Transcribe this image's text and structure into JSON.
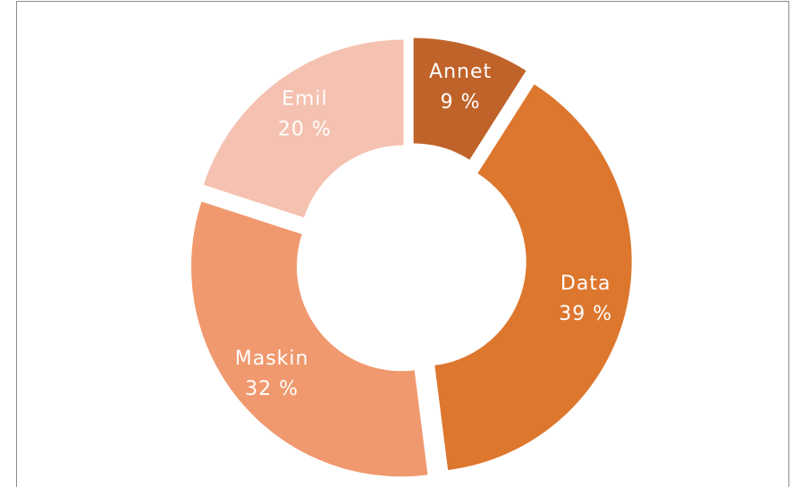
{
  "chart_data": {
    "type": "donut",
    "categories": [
      "Annet",
      "Data",
      "Maskin",
      "Emil"
    ],
    "values": [
      9,
      39,
      32,
      20
    ],
    "value_labels": [
      "9 %",
      "39 %",
      "32 %",
      "20 %"
    ],
    "colors": [
      "#c0632a",
      "#dd772e",
      "#f0996e",
      "#f5c1b0"
    ]
  }
}
